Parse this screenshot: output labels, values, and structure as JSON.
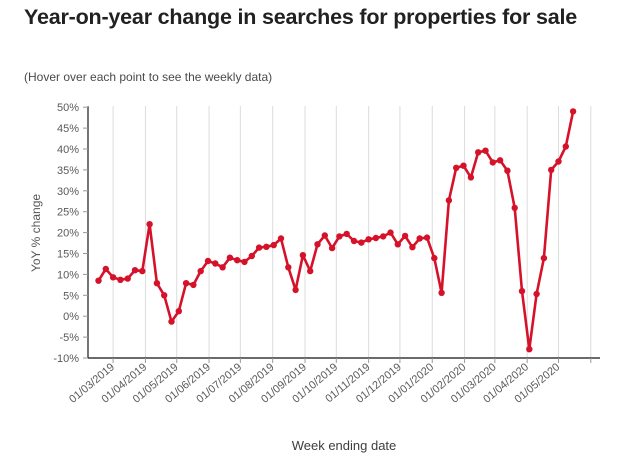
{
  "header": {
    "title": "Year-on-year change in searches for properties for sale",
    "subtitle": "(Hover over each point to see the weekly data)"
  },
  "colors": {
    "line": "#d6122b",
    "point": "#d6122b",
    "gridline": "#dcdcdc",
    "axis_line": "#3a3a3a",
    "tick_mark": "#999999",
    "title_text": "#212121",
    "axis_text": "#5a5a5a"
  },
  "chart_data": {
    "type": "line",
    "title": "Year-on-year change in searches for properties for sale",
    "xlabel": "Week ending date",
    "ylabel": "YoY % change",
    "ylim": [
      -10,
      50
    ],
    "ytick_step": 5,
    "ytick_labels": [
      "-10%",
      "-5%",
      "0%",
      "5%",
      "10%",
      "15%",
      "20%",
      "25%",
      "30%",
      "35%",
      "40%",
      "45%",
      "50%"
    ],
    "x_tick_labels": [
      "01/03/2019",
      "01/04/2019",
      "01/05/2019",
      "01/06/2019",
      "01/07/2019",
      "01/08/2019",
      "01/09/2019",
      "01/10/2019",
      "01/11/2019",
      "01/12/2019",
      "01/01/2020",
      "01/02/2020",
      "01/03/2020",
      "01/04/2020",
      "01/05/2020"
    ],
    "grid": "vertical",
    "legend": null,
    "marker": "circle",
    "x_dates": [
      "15/02/2019",
      "22/02/2019",
      "01/03/2019",
      "08/03/2019",
      "15/03/2019",
      "22/03/2019",
      "29/03/2019",
      "05/04/2019",
      "12/04/2019",
      "19/04/2019",
      "26/04/2019",
      "03/05/2019",
      "10/05/2019",
      "17/05/2019",
      "24/05/2019",
      "31/05/2019",
      "07/06/2019",
      "14/06/2019",
      "21/06/2019",
      "28/06/2019",
      "05/07/2019",
      "12/07/2019",
      "19/07/2019",
      "26/07/2019",
      "02/08/2019",
      "09/08/2019",
      "16/08/2019",
      "23/08/2019",
      "30/08/2019",
      "06/09/2019",
      "13/09/2019",
      "20/09/2019",
      "27/09/2019",
      "04/10/2019",
      "11/10/2019",
      "18/10/2019",
      "25/10/2019",
      "01/11/2019",
      "08/11/2019",
      "15/11/2019",
      "22/11/2019",
      "29/11/2019",
      "06/12/2019",
      "13/12/2019",
      "20/12/2019",
      "27/12/2019",
      "03/01/2020",
      "10/01/2020",
      "17/01/2020",
      "24/01/2020",
      "31/01/2020",
      "07/02/2020",
      "14/02/2020",
      "21/02/2020",
      "28/02/2020",
      "06/03/2020",
      "13/03/2020",
      "20/03/2020",
      "27/03/2020",
      "03/04/2020",
      "10/04/2020",
      "17/04/2020",
      "24/04/2020",
      "01/05/2020",
      "08/05/2020",
      "15/05/2020"
    ],
    "values": [
      8.5,
      11.3,
      9.3,
      8.7,
      9.0,
      11.0,
      10.8,
      22.0,
      7.9,
      5.0,
      -1.3,
      1.2,
      7.9,
      7.5,
      10.8,
      13.2,
      12.6,
      11.7,
      14.0,
      13.4,
      13.0,
      14.4,
      16.4,
      16.6,
      17.0,
      18.6,
      11.7,
      6.3,
      14.6,
      10.8,
      17.2,
      19.3,
      16.3,
      19.1,
      19.7,
      18.0,
      17.6,
      18.4,
      18.7,
      19.1,
      20.0,
      17.2,
      19.2,
      16.5,
      18.6,
      18.8,
      13.9,
      5.6,
      27.7,
      35.5,
      36.0,
      33.2,
      39.2,
      39.6,
      36.8,
      37.3,
      34.8,
      25.9,
      6.0,
      -7.9,
      5.3,
      13.9,
      35.0,
      37.0,
      40.6,
      49.0
    ]
  }
}
